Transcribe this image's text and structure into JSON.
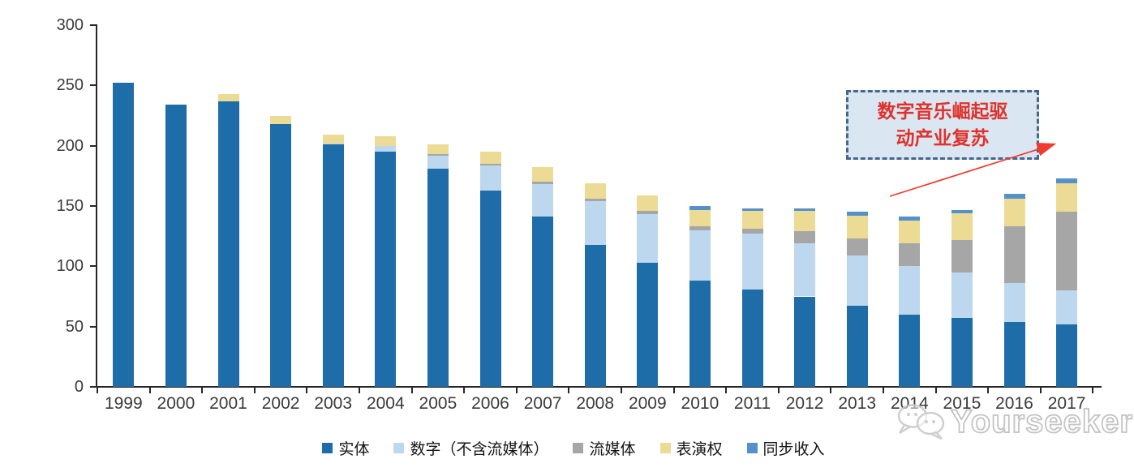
{
  "chart_data": {
    "type": "bar",
    "stacked": true,
    "title": "",
    "xlabel": "",
    "ylabel": "",
    "ylim": [
      0,
      300
    ],
    "yticks": [
      0,
      50,
      100,
      150,
      200,
      250,
      300
    ],
    "grid": false,
    "legend_position": "bottom",
    "categories": [
      "1999",
      "2000",
      "2001",
      "2002",
      "2003",
      "2004",
      "2005",
      "2006",
      "2007",
      "2008",
      "2009",
      "2010",
      "2011",
      "2012",
      "2013",
      "2014",
      "2015",
      "2016",
      "2017"
    ],
    "series": [
      {
        "key": "physical",
        "name": "实体",
        "color": "#1E6CA8",
        "values": [
          252,
          234,
          237,
          218,
          201,
          195,
          181,
          163,
          141,
          118,
          103,
          88,
          81,
          75,
          67,
          60,
          57,
          54,
          52
        ]
      },
      {
        "key": "digital-excl-streaming",
        "name": "数字（不含流媒体）",
        "color": "#BDD7EE",
        "values": [
          0,
          0,
          0,
          0,
          1,
          5,
          11,
          21,
          27,
          36,
          40,
          42,
          46,
          44,
          42,
          40,
          38,
          32,
          28
        ]
      },
      {
        "key": "streaming",
        "name": "流媒体",
        "color": "#A6A6A6",
        "values": [
          0,
          0,
          0,
          0,
          0,
          0,
          1,
          1,
          2,
          2,
          3,
          3,
          4,
          10,
          14,
          19,
          27,
          47,
          65
        ]
      },
      {
        "key": "performance-rights",
        "name": "表演权",
        "color": "#EBDB95",
        "values": [
          0,
          0,
          6,
          7,
          7,
          8,
          8,
          10,
          12,
          13,
          13,
          14,
          15,
          17,
          19,
          19,
          22,
          23,
          24
        ]
      },
      {
        "key": "sync-revenue",
        "name": "同步收入",
        "color": "#5490CA",
        "values": [
          0,
          0,
          0,
          0,
          0,
          0,
          0,
          0,
          0,
          0,
          0,
          3,
          2,
          2,
          3,
          3,
          3,
          4,
          4
        ]
      }
    ]
  },
  "annotation": {
    "line1": "数字音乐崛起驱",
    "line2": "动产业复苏"
  },
  "watermark": {
    "text": "Yourseeker"
  },
  "colors": {
    "axis": "#262626",
    "tick_label": "#3a3a3a",
    "annotation_text": "#e0312b",
    "annotation_border": "#44678e",
    "annotation_fill": "#dae7f3",
    "arrow": "#f03b30",
    "watermark_outline": "#c3c3c3"
  }
}
